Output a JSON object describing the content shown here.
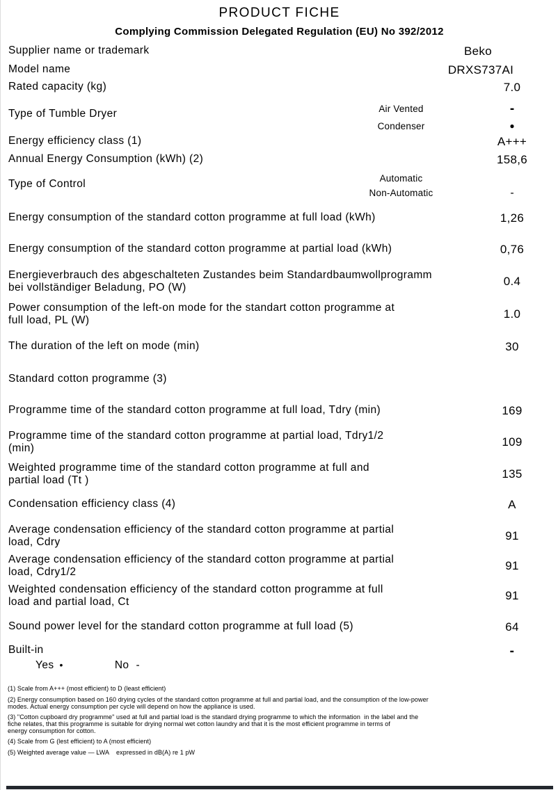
{
  "header": {
    "title": "PRODUCT FICHE",
    "subtitle": "Complying Commission Delegated Regulation (EU) No 392/2012"
  },
  "rows": [
    {
      "label": "Supplier name or trademark",
      "value": "Beko"
    },
    {
      "label": "Model name",
      "value": "DRXS737AI"
    },
    {
      "label": "Rated capacity (kg)",
      "value": "7.0"
    },
    {
      "label": "Type of Tumble Dryer",
      "options": [
        {
          "name": "Air Vented",
          "mark": "-"
        },
        {
          "name": "Condenser",
          "mark": "●"
        }
      ]
    },
    {
      "label": "Energy efficiency class (1)",
      "value": "A+++"
    },
    {
      "label": "Annual Energy Consumption (kWh) (2)",
      "value": "158,6"
    },
    {
      "label": "Type of Control",
      "options": [
        {
          "name": "Automatic",
          "mark": ""
        },
        {
          "name": "Non-Automatic",
          "mark": "-"
        }
      ]
    },
    {
      "label": "Energy consumption of the standard cotton programme at full load (kWh)",
      "value": "1,26"
    },
    {
      "label": "Energy consumption of the standard cotton programme at partial load (kWh)",
      "value": "0,76"
    },
    {
      "label": [
        "Energieverbrauch des abgeschalteten Zustandes beim Standardbaumwollprogramm",
        "bei vollständiger Beladung, PO (W)"
      ],
      "value": "0.4"
    },
    {
      "label": [
        "Power consumption of the left-on mode for the standart cotton programme at",
        "full load, PL (W)"
      ],
      "value": "1.0"
    },
    {
      "label": "The duration of the left on mode (min)",
      "value": "30"
    },
    {
      "label": "Standard cotton programme (3)",
      "value": ""
    },
    {
      "label": "Programme time of the standard cotton programme at full load, Tdry (min)",
      "value": "169"
    },
    {
      "label": [
        "Programme time of the standard cotton programme at partial load, Tdry1/2",
        "(min)"
      ],
      "value": "109"
    },
    {
      "label": [
        "Weighted programme time of the standard cotton programme at full and",
        "partial load (Tt )"
      ],
      "value": "135"
    },
    {
      "label": "Condensation efficiency class (4)",
      "value": "A"
    },
    {
      "label": [
        "Average condensation efficiency of the standard cotton programme at partial",
        "load, Cdry"
      ],
      "value": "91"
    },
    {
      "label": [
        "Average condensation efficiency of the standard cotton programme at partial",
        "load, Cdry1/2"
      ],
      "value": "91"
    },
    {
      "label": [
        "Weighted condensation efficiency of the standard cotton programme at full",
        "load and partial load, Ct"
      ],
      "value": "91"
    },
    {
      "label": "Sound power level for the standard cotton programme at full load (5)",
      "value": "64"
    },
    {
      "label": "Built-in",
      "value": "-"
    }
  ],
  "legend": {
    "yes_label": "Yes",
    "yes_mark": "•",
    "no_label": "No",
    "no_mark": "-"
  },
  "footnotes": [
    "(1) Scale from A+++ (most efficient) to D (least efficient)",
    [
      "(2) Energy consumption based on 160 drying cycles of the standard cotton programme at full and partial load, and the consumption of the low-power",
      "modes. Actual energy consumption per cycle will depend on how the appliance is used."
    ],
    [
      "(3) \"Cotton cupboard dry programme\" used at full and partial load is the standard drying programme to which the information  in the label and the",
      "fiche relates, that this programme is suitable for drying normal wet cotton laundry and that it is the most efficient programme in terms of",
      "energy consumption for cotton."
    ],
    "(4) Scale from G (lest efficient) to A (most efficient)",
    "(5) Weighted average value — LWA    expressed in dB(A) re 1 pW"
  ],
  "colors": {
    "text": "#000000",
    "bottom_bar": "#23272e"
  }
}
